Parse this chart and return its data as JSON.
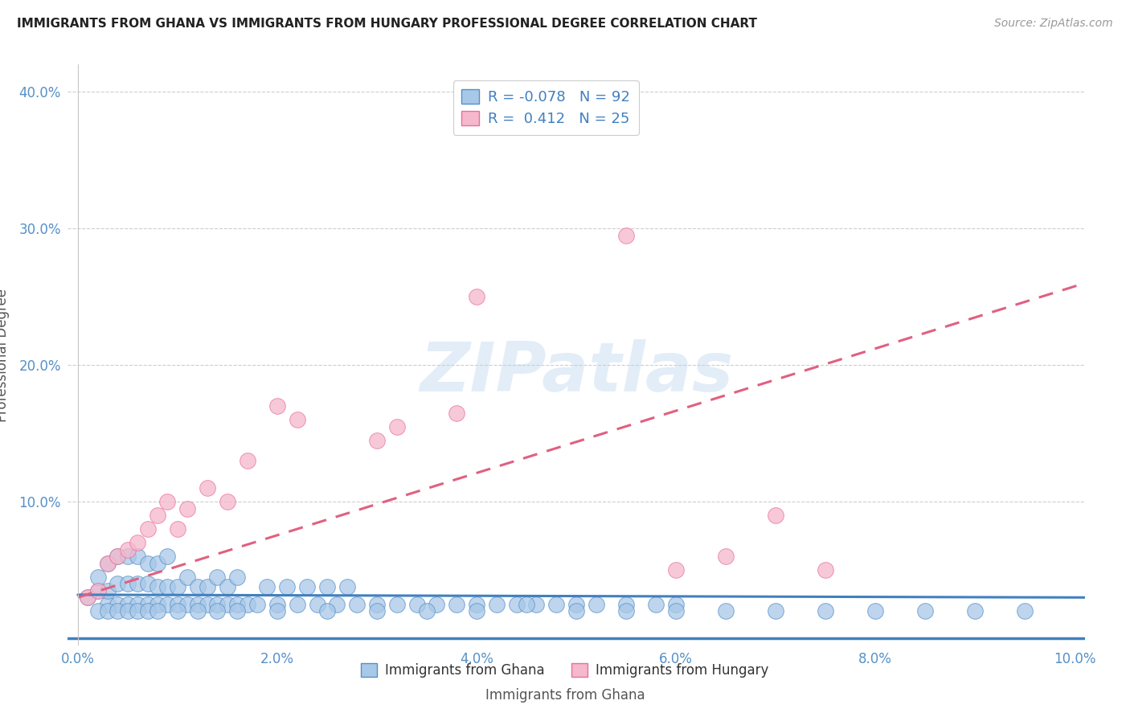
{
  "title": "IMMIGRANTS FROM GHANA VS IMMIGRANTS FROM HUNGARY PROFESSIONAL DEGREE CORRELATION CHART",
  "source": "Source: ZipAtlas.com",
  "xlabel": "Immigrants from Ghana",
  "ylabel": "Professional Degree",
  "xlim": [
    -0.001,
    0.101
  ],
  "ylim": [
    -0.005,
    0.42
  ],
  "xticks": [
    0.0,
    0.02,
    0.04,
    0.06,
    0.08,
    0.1
  ],
  "yticks": [
    0.0,
    0.1,
    0.2,
    0.3,
    0.4
  ],
  "xtick_labels": [
    "0.0%",
    "2.0%",
    "4.0%",
    "6.0%",
    "8.0%",
    "10.0%"
  ],
  "ytick_labels": [
    "",
    "10.0%",
    "20.0%",
    "30.0%",
    "40.0%"
  ],
  "ghana_color": "#a8c8e8",
  "hungary_color": "#f5b8cc",
  "ghana_edge_color": "#5590c8",
  "hungary_edge_color": "#e8709a",
  "ghana_line_color": "#4080c0",
  "hungary_line_color": "#e06080",
  "ghana_R": -0.078,
  "ghana_N": 92,
  "hungary_R": 0.412,
  "hungary_N": 25,
  "watermark": "ZIPatlas",
  "background_color": "#ffffff",
  "grid_color": "#c8c8c8",
  "title_color": "#222222",
  "source_color": "#999999",
  "tick_color": "#5590c8",
  "label_color": "#555555",
  "legend_r_color": "#4080c0",
  "ghana_scatter_x": [
    0.001,
    0.002,
    0.002,
    0.003,
    0.003,
    0.003,
    0.004,
    0.004,
    0.004,
    0.005,
    0.005,
    0.005,
    0.006,
    0.006,
    0.006,
    0.007,
    0.007,
    0.007,
    0.008,
    0.008,
    0.008,
    0.009,
    0.009,
    0.009,
    0.01,
    0.01,
    0.011,
    0.011,
    0.012,
    0.012,
    0.013,
    0.013,
    0.014,
    0.014,
    0.015,
    0.015,
    0.016,
    0.016,
    0.017,
    0.018,
    0.019,
    0.02,
    0.021,
    0.022,
    0.023,
    0.024,
    0.025,
    0.026,
    0.027,
    0.028,
    0.03,
    0.032,
    0.034,
    0.036,
    0.038,
    0.04,
    0.042,
    0.044,
    0.046,
    0.05,
    0.055,
    0.06,
    0.002,
    0.003,
    0.004,
    0.005,
    0.006,
    0.007,
    0.008,
    0.01,
    0.012,
    0.014,
    0.016,
    0.02,
    0.025,
    0.03,
    0.035,
    0.04,
    0.05,
    0.055,
    0.06,
    0.065,
    0.07,
    0.075,
    0.08,
    0.085,
    0.09,
    0.095,
    0.045,
    0.048,
    0.052,
    0.058
  ],
  "ghana_scatter_y": [
    0.03,
    0.035,
    0.045,
    0.025,
    0.035,
    0.055,
    0.025,
    0.04,
    0.06,
    0.025,
    0.04,
    0.06,
    0.025,
    0.04,
    0.06,
    0.025,
    0.04,
    0.055,
    0.025,
    0.038,
    0.055,
    0.025,
    0.038,
    0.06,
    0.025,
    0.038,
    0.025,
    0.045,
    0.025,
    0.038,
    0.025,
    0.038,
    0.025,
    0.045,
    0.025,
    0.038,
    0.025,
    0.045,
    0.025,
    0.025,
    0.038,
    0.025,
    0.038,
    0.025,
    0.038,
    0.025,
    0.038,
    0.025,
    0.038,
    0.025,
    0.025,
    0.025,
    0.025,
    0.025,
    0.025,
    0.025,
    0.025,
    0.025,
    0.025,
    0.025,
    0.025,
    0.025,
    0.02,
    0.02,
    0.02,
    0.02,
    0.02,
    0.02,
    0.02,
    0.02,
    0.02,
    0.02,
    0.02,
    0.02,
    0.02,
    0.02,
    0.02,
    0.02,
    0.02,
    0.02,
    0.02,
    0.02,
    0.02,
    0.02,
    0.02,
    0.02,
    0.02,
    0.02,
    0.025,
    0.025,
    0.025,
    0.025
  ],
  "hungary_scatter_x": [
    0.001,
    0.002,
    0.003,
    0.004,
    0.005,
    0.006,
    0.007,
    0.008,
    0.009,
    0.01,
    0.011,
    0.013,
    0.015,
    0.017,
    0.02,
    0.022,
    0.03,
    0.032,
    0.038,
    0.04,
    0.055,
    0.06,
    0.065,
    0.07,
    0.075
  ],
  "hungary_scatter_y": [
    0.03,
    0.035,
    0.055,
    0.06,
    0.065,
    0.07,
    0.08,
    0.09,
    0.1,
    0.08,
    0.095,
    0.11,
    0.1,
    0.13,
    0.17,
    0.16,
    0.145,
    0.155,
    0.165,
    0.25,
    0.295,
    0.05,
    0.06,
    0.09,
    0.05
  ],
  "ghana_line_x0": 0.0,
  "ghana_line_x1": 0.101,
  "ghana_line_y0": 0.032,
  "ghana_line_y1": 0.03,
  "hungary_line_x0": 0.0,
  "hungary_line_x1": 0.101,
  "hungary_line_y0": 0.03,
  "hungary_line_y1": 0.26
}
